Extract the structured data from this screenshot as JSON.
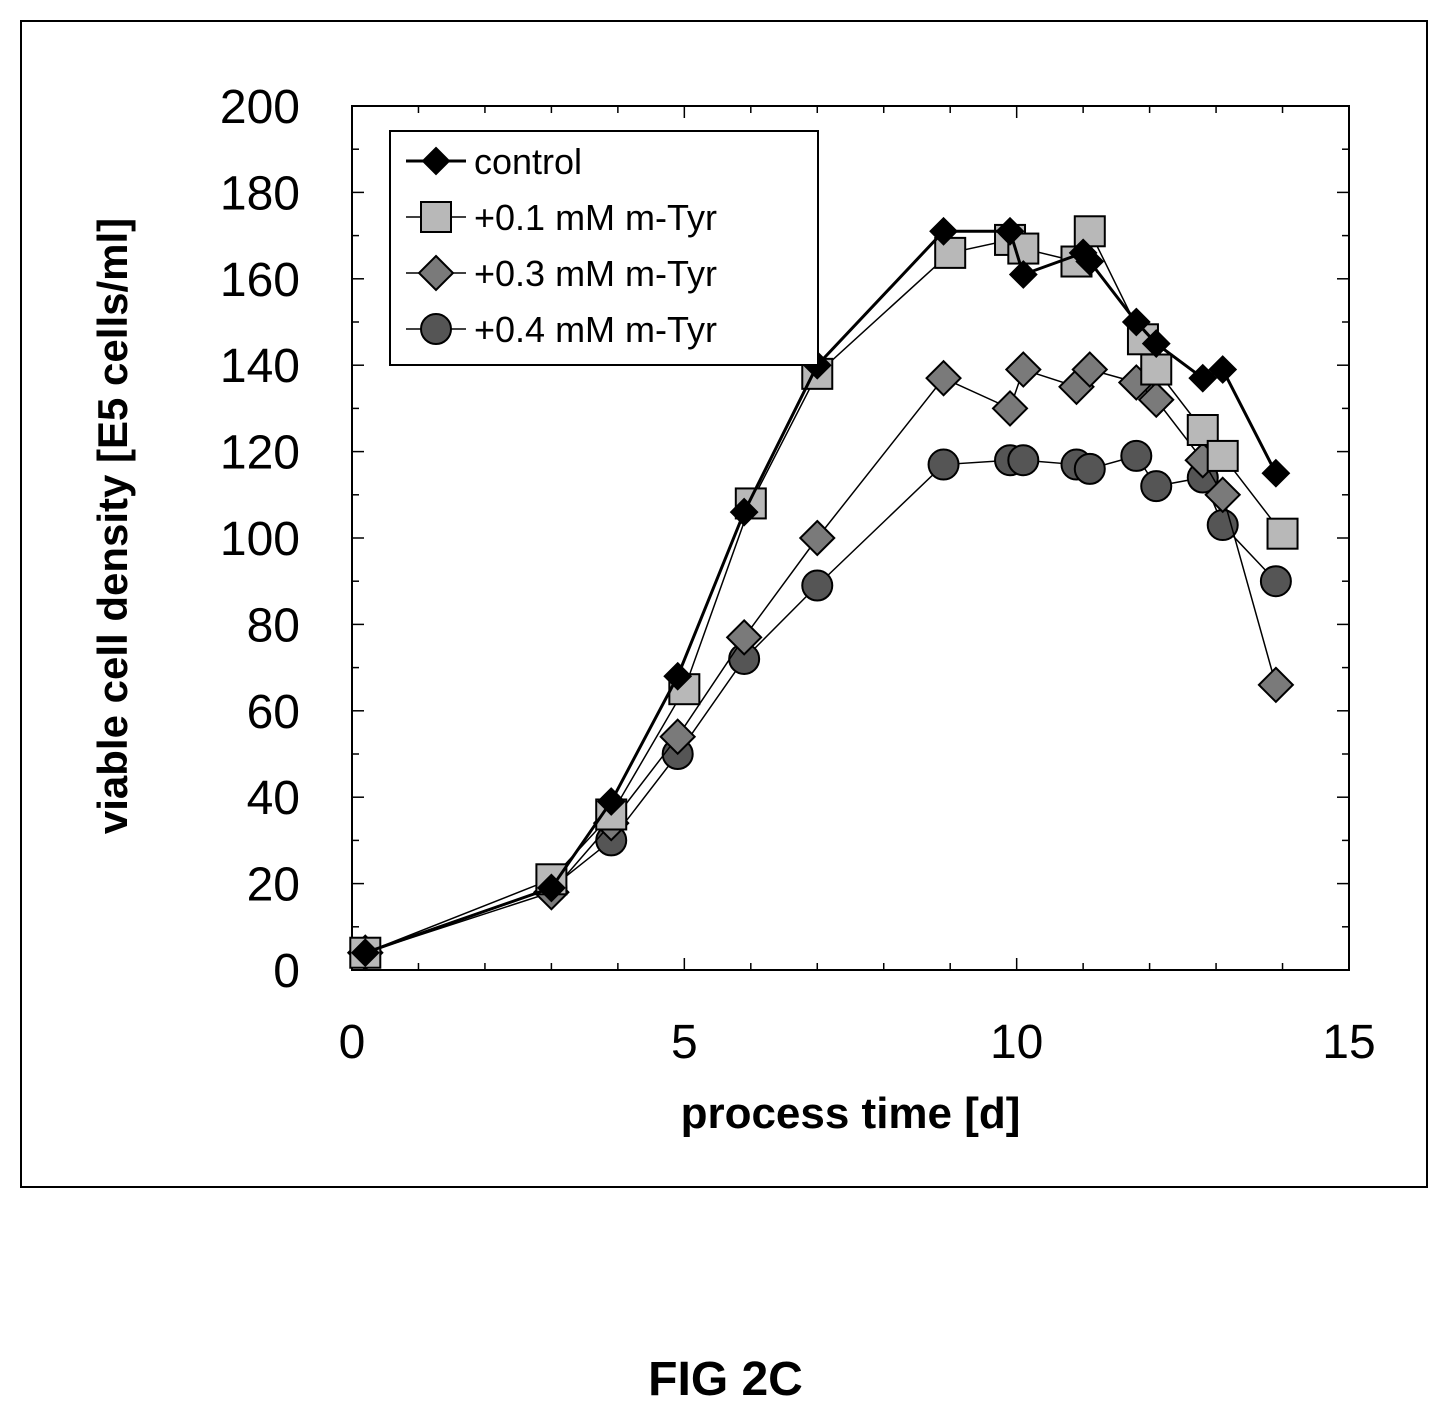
{
  "chart_data": {
    "type": "line",
    "xlabel": "process time [d]",
    "ylabel": "viable cell density [E5 cells/ml]",
    "xlim": [
      0,
      15
    ],
    "ylim": [
      0,
      200
    ],
    "xticks": [
      0,
      5,
      10,
      15
    ],
    "yticks": [
      0,
      20,
      40,
      60,
      80,
      100,
      120,
      140,
      160,
      180,
      200
    ],
    "x_minor_step": 1,
    "y_minor_step": 10,
    "grid": false,
    "legend_position": "top-left",
    "series": [
      {
        "name": "control",
        "marker": "diamond",
        "color": "#000000",
        "x": [
          0.2,
          3,
          3.9,
          4.9,
          5.9,
          7,
          8.9,
          9.9,
          10.1,
          11,
          11.1,
          11.8,
          12.1,
          12.8,
          13.1,
          13.9
        ],
        "y": [
          4,
          19,
          39,
          68,
          106,
          140,
          171,
          171,
          161,
          166,
          164,
          150,
          145,
          137,
          139,
          115
        ]
      },
      {
        "name": "+0.1 mM m-Tyr",
        "marker": "square",
        "color": "#b8b8b8",
        "x": [
          0.2,
          3,
          3.9,
          5,
          6,
          7,
          9,
          9.9,
          10.1,
          10.9,
          11.1,
          11.9,
          12.1,
          12.8,
          13.1,
          14
        ],
        "y": [
          4,
          21,
          36,
          65,
          108,
          138,
          166,
          169,
          167,
          164,
          171,
          146,
          139,
          125,
          119,
          101
        ]
      },
      {
        "name": "+0.3 mM m-Tyr",
        "marker": "diamond",
        "color": "#7a7a7a",
        "x": [
          0.2,
          3,
          3.9,
          4.9,
          5.9,
          7,
          8.9,
          9.9,
          10.1,
          10.9,
          11.1,
          11.8,
          12.1,
          12.8,
          13.1,
          13.9
        ],
        "y": [
          4,
          18,
          34,
          54,
          77,
          100,
          137,
          130,
          139,
          135,
          139,
          136,
          132,
          118,
          110,
          66
        ]
      },
      {
        "name": "+0.4 mM m-Tyr",
        "marker": "circle",
        "color": "#555555",
        "x": [
          0.2,
          3,
          3.9,
          4.9,
          5.9,
          7,
          8.9,
          9.9,
          10.1,
          10.9,
          11.1,
          11.8,
          12.1,
          12.8,
          13.1,
          13.9
        ],
        "y": [
          4,
          19,
          30,
          50,
          72,
          89,
          117,
          118,
          118,
          117,
          116,
          119,
          112,
          114,
          103,
          90
        ]
      }
    ]
  },
  "caption": "FIG 2C"
}
